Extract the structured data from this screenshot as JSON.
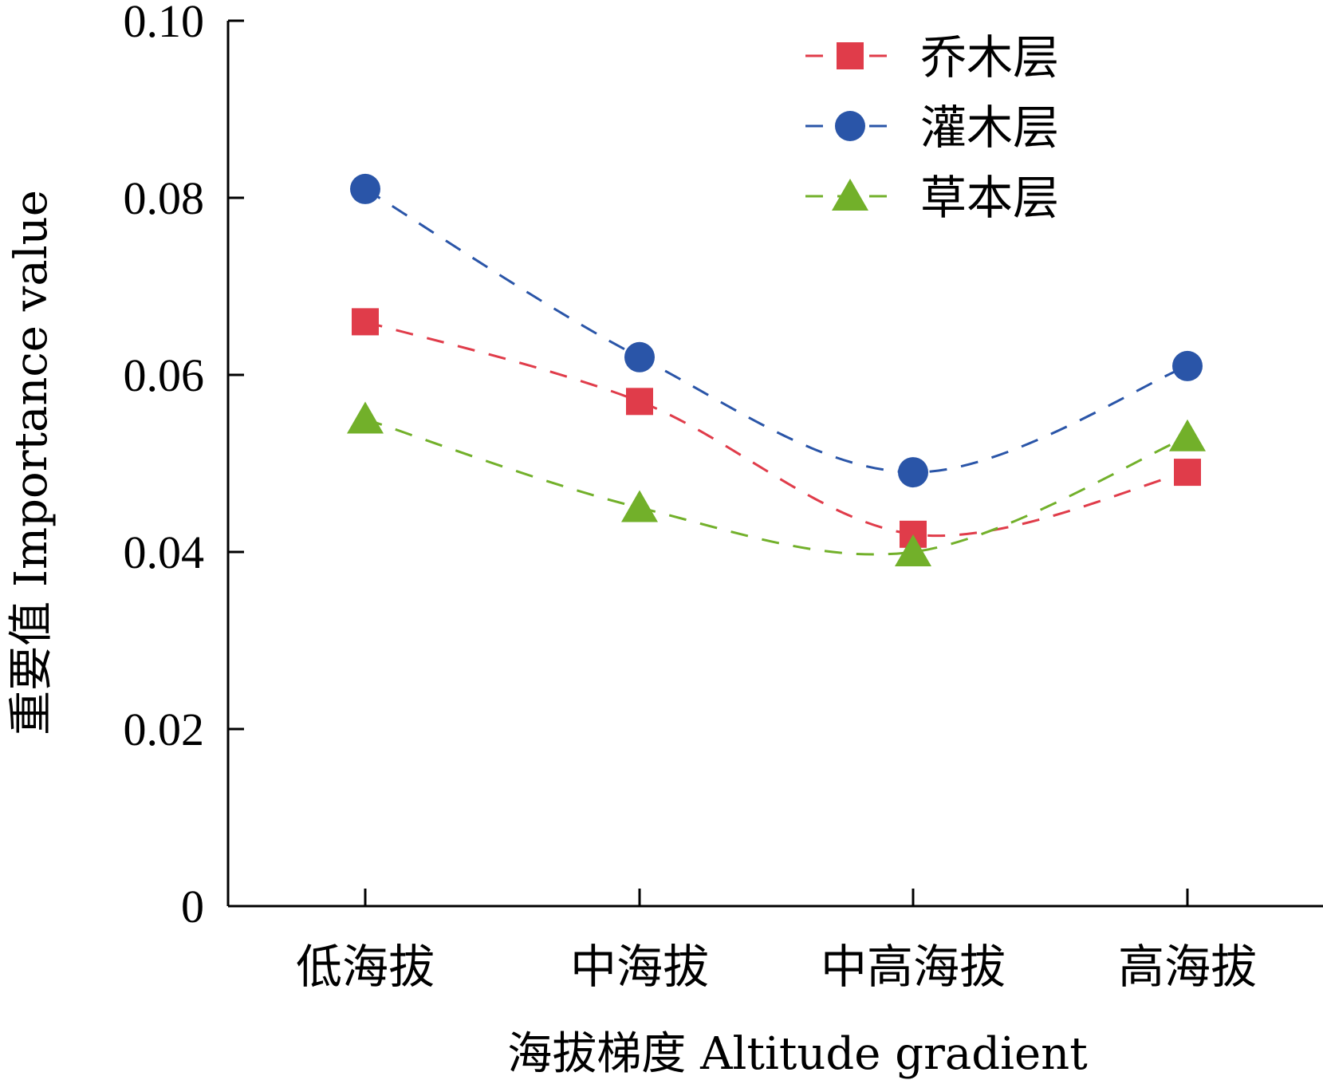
{
  "chart_data": {
    "type": "line",
    "title": "",
    "xlabel": "海拔梯度 Altitude gradient",
    "ylabel": "重要值 Importance value",
    "categories": [
      "低海拔",
      "中海拔",
      "中高海拔",
      "高海拔"
    ],
    "ylim": [
      0,
      0.1
    ],
    "yticks": [
      0,
      0.02,
      0.04,
      0.06,
      0.08,
      0.1
    ],
    "ytick_labels": [
      "0",
      "0.02",
      "0.04",
      "0.06",
      "0.08",
      "0.10"
    ],
    "grid": false,
    "legend_position": "top-right",
    "series": [
      {
        "name": "乔木层",
        "marker": "square",
        "color": "#e03c4a",
        "values": [
          0.066,
          0.057,
          0.042,
          0.049
        ]
      },
      {
        "name": "灌木层",
        "marker": "circle",
        "color": "#2a55a8",
        "values": [
          0.081,
          0.062,
          0.049,
          0.061
        ]
      },
      {
        "name": "草本层",
        "marker": "triangle",
        "color": "#72b02a",
        "values": [
          0.055,
          0.045,
          0.04,
          0.053
        ]
      }
    ]
  }
}
